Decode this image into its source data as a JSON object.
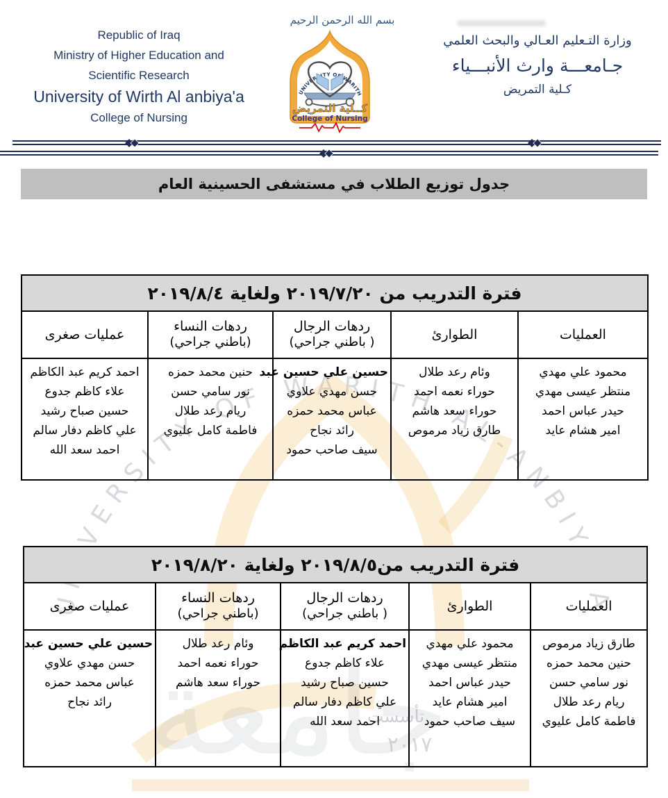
{
  "header": {
    "basmala": "بسم الله الرحمن الرحيم",
    "left": {
      "line1": "Republic of Iraq",
      "line2": "Ministry of Higher Education and",
      "line3": "Scientific Research",
      "line4": "University of Wirth Al anbiya'a",
      "line5": "College of Nursing"
    },
    "right": {
      "line1": "وزارة التـعليم العـالي والبحث العلمي",
      "line2": "جـامعـــة وارث الأنبـــياء",
      "line3": "كـلية التمريض"
    },
    "logo": {
      "arc_text": "UNIVERSITY OF WARITH AL-ANBIYAA",
      "arabic_name": "كــلية التمريض",
      "english_name": "College of Nursing"
    }
  },
  "title_bar": {
    "text": "جدول توزيع الطلاب في مستشفى الحسينية العام"
  },
  "tables": [
    {
      "period_title": "فترة التدريب من ٢٠١٩/٧/٢٠ ولغاية ٢٠١٩/٨/٤",
      "columns": [
        {
          "label": "العمليات",
          "sublabel": "",
          "students": [
            {
              "t": "محمود علي مهدي"
            },
            {
              "t": "منتظر عيسى مهدي"
            },
            {
              "t": "حيدر عباس احمد"
            },
            {
              "t": "امير هشام عايد"
            }
          ]
        },
        {
          "label": "الطوارئ",
          "sublabel": "",
          "students": [
            {
              "t": "وئام رعد طلال"
            },
            {
              "t": "حوراء نعمه احمد"
            },
            {
              "t": "حوراء سعد هاشم"
            },
            {
              "t": "طارق زياد مرموص"
            }
          ]
        },
        {
          "label": "ردهات الرجال",
          "sublabel": "( باطني جراحي)",
          "students": [
            {
              "t": "حسين علي حسين عبد",
              "b": true
            },
            {
              "t": "حسن مهدي علاوي"
            },
            {
              "t": "عباس محمد حمزه"
            },
            {
              "t": "رائد نجاح"
            },
            {
              "t": "سيف صاحب حمود"
            }
          ]
        },
        {
          "label": "ردهات النساء",
          "sublabel": "(باطني جراحي)",
          "students": [
            {
              "t": "حنين محمد حمزه"
            },
            {
              "t": "نور سامي حسن"
            },
            {
              "t": "ريام رعد طلال"
            },
            {
              "t": "فاطمة كامل عليوي"
            }
          ]
        },
        {
          "label": "عمليات صغرى",
          "sublabel": "",
          "students": [
            {
              "t": "احمد كريم عبد الكاظم"
            },
            {
              "t": "علاء كاظم جدوع"
            },
            {
              "t": "حسين صباح رشيد"
            },
            {
              "t": "علي كاظم دفار سالم"
            },
            {
              "t": "احمد سعد الله"
            }
          ]
        }
      ]
    },
    {
      "period_title": "فترة التدريب من٢٠١٩/٨/٥ ولغاية ٢٠١٩/٨/٢٠",
      "columns": [
        {
          "label": "العمليات",
          "sublabel": "",
          "students": [
            {
              "t": "طارق زياد مرموص"
            },
            {
              "t": "حنين محمد حمزه"
            },
            {
              "t": "نور سامي حسن"
            },
            {
              "t": "ريام رعد طلال"
            },
            {
              "t": "فاطمة كامل عليوي"
            }
          ]
        },
        {
          "label": "الطوارئ",
          "sublabel": "",
          "students": [
            {
              "t": "محمود علي مهدي"
            },
            {
              "t": "منتظر عيسى مهدي"
            },
            {
              "t": "حيدر عباس احمد"
            },
            {
              "t": "امير هشام عايد"
            },
            {
              "t": "سيف صاحب حمود"
            }
          ]
        },
        {
          "label": "ردهات الرجال",
          "sublabel": "( باطني جراحي)",
          "students": [
            {
              "t": "احمد كريم عبد الكاظم",
              "b": true
            },
            {
              "t": "علاء كاظم جدوع"
            },
            {
              "t": "حسين صباح رشيد"
            },
            {
              "t": "علي كاظم دفار سالم"
            },
            {
              "t": "احمد سعد الله"
            }
          ]
        },
        {
          "label": "ردهات النساء",
          "sublabel": "(باطني جراحي)",
          "students": [
            {
              "t": "وئام رعد طلال"
            },
            {
              "t": "حوراء نعمه احمد"
            },
            {
              "t": "حوراء سعد هاشم"
            }
          ]
        },
        {
          "label": "عمليات صغرى",
          "sublabel": "",
          "students": [
            {
              "t": "حسين علي حسين عبد",
              "b": true
            },
            {
              "t": "حسن مهدي علاوي"
            },
            {
              "t": "عباس محمد حمزه"
            },
            {
              "t": "رائد نجاح"
            }
          ]
        }
      ]
    }
  ],
  "watermark": {
    "arc_text": "UNIVERSITY OF WARITH AL-ANBIYA'A",
    "big_calligraphy": "جامعة",
    "founded": "تأسست",
    "year": "٢٠١٧"
  },
  "colors": {
    "navy": "#1f3864",
    "divider_navy": "#1d2d52",
    "title_bar_bg": "#bfbfbf",
    "period_bg": "#d8d8d8",
    "logo_gold": "#f2a93b",
    "logo_purple": "#3a3580",
    "ekg_red": "#cc1111"
  }
}
